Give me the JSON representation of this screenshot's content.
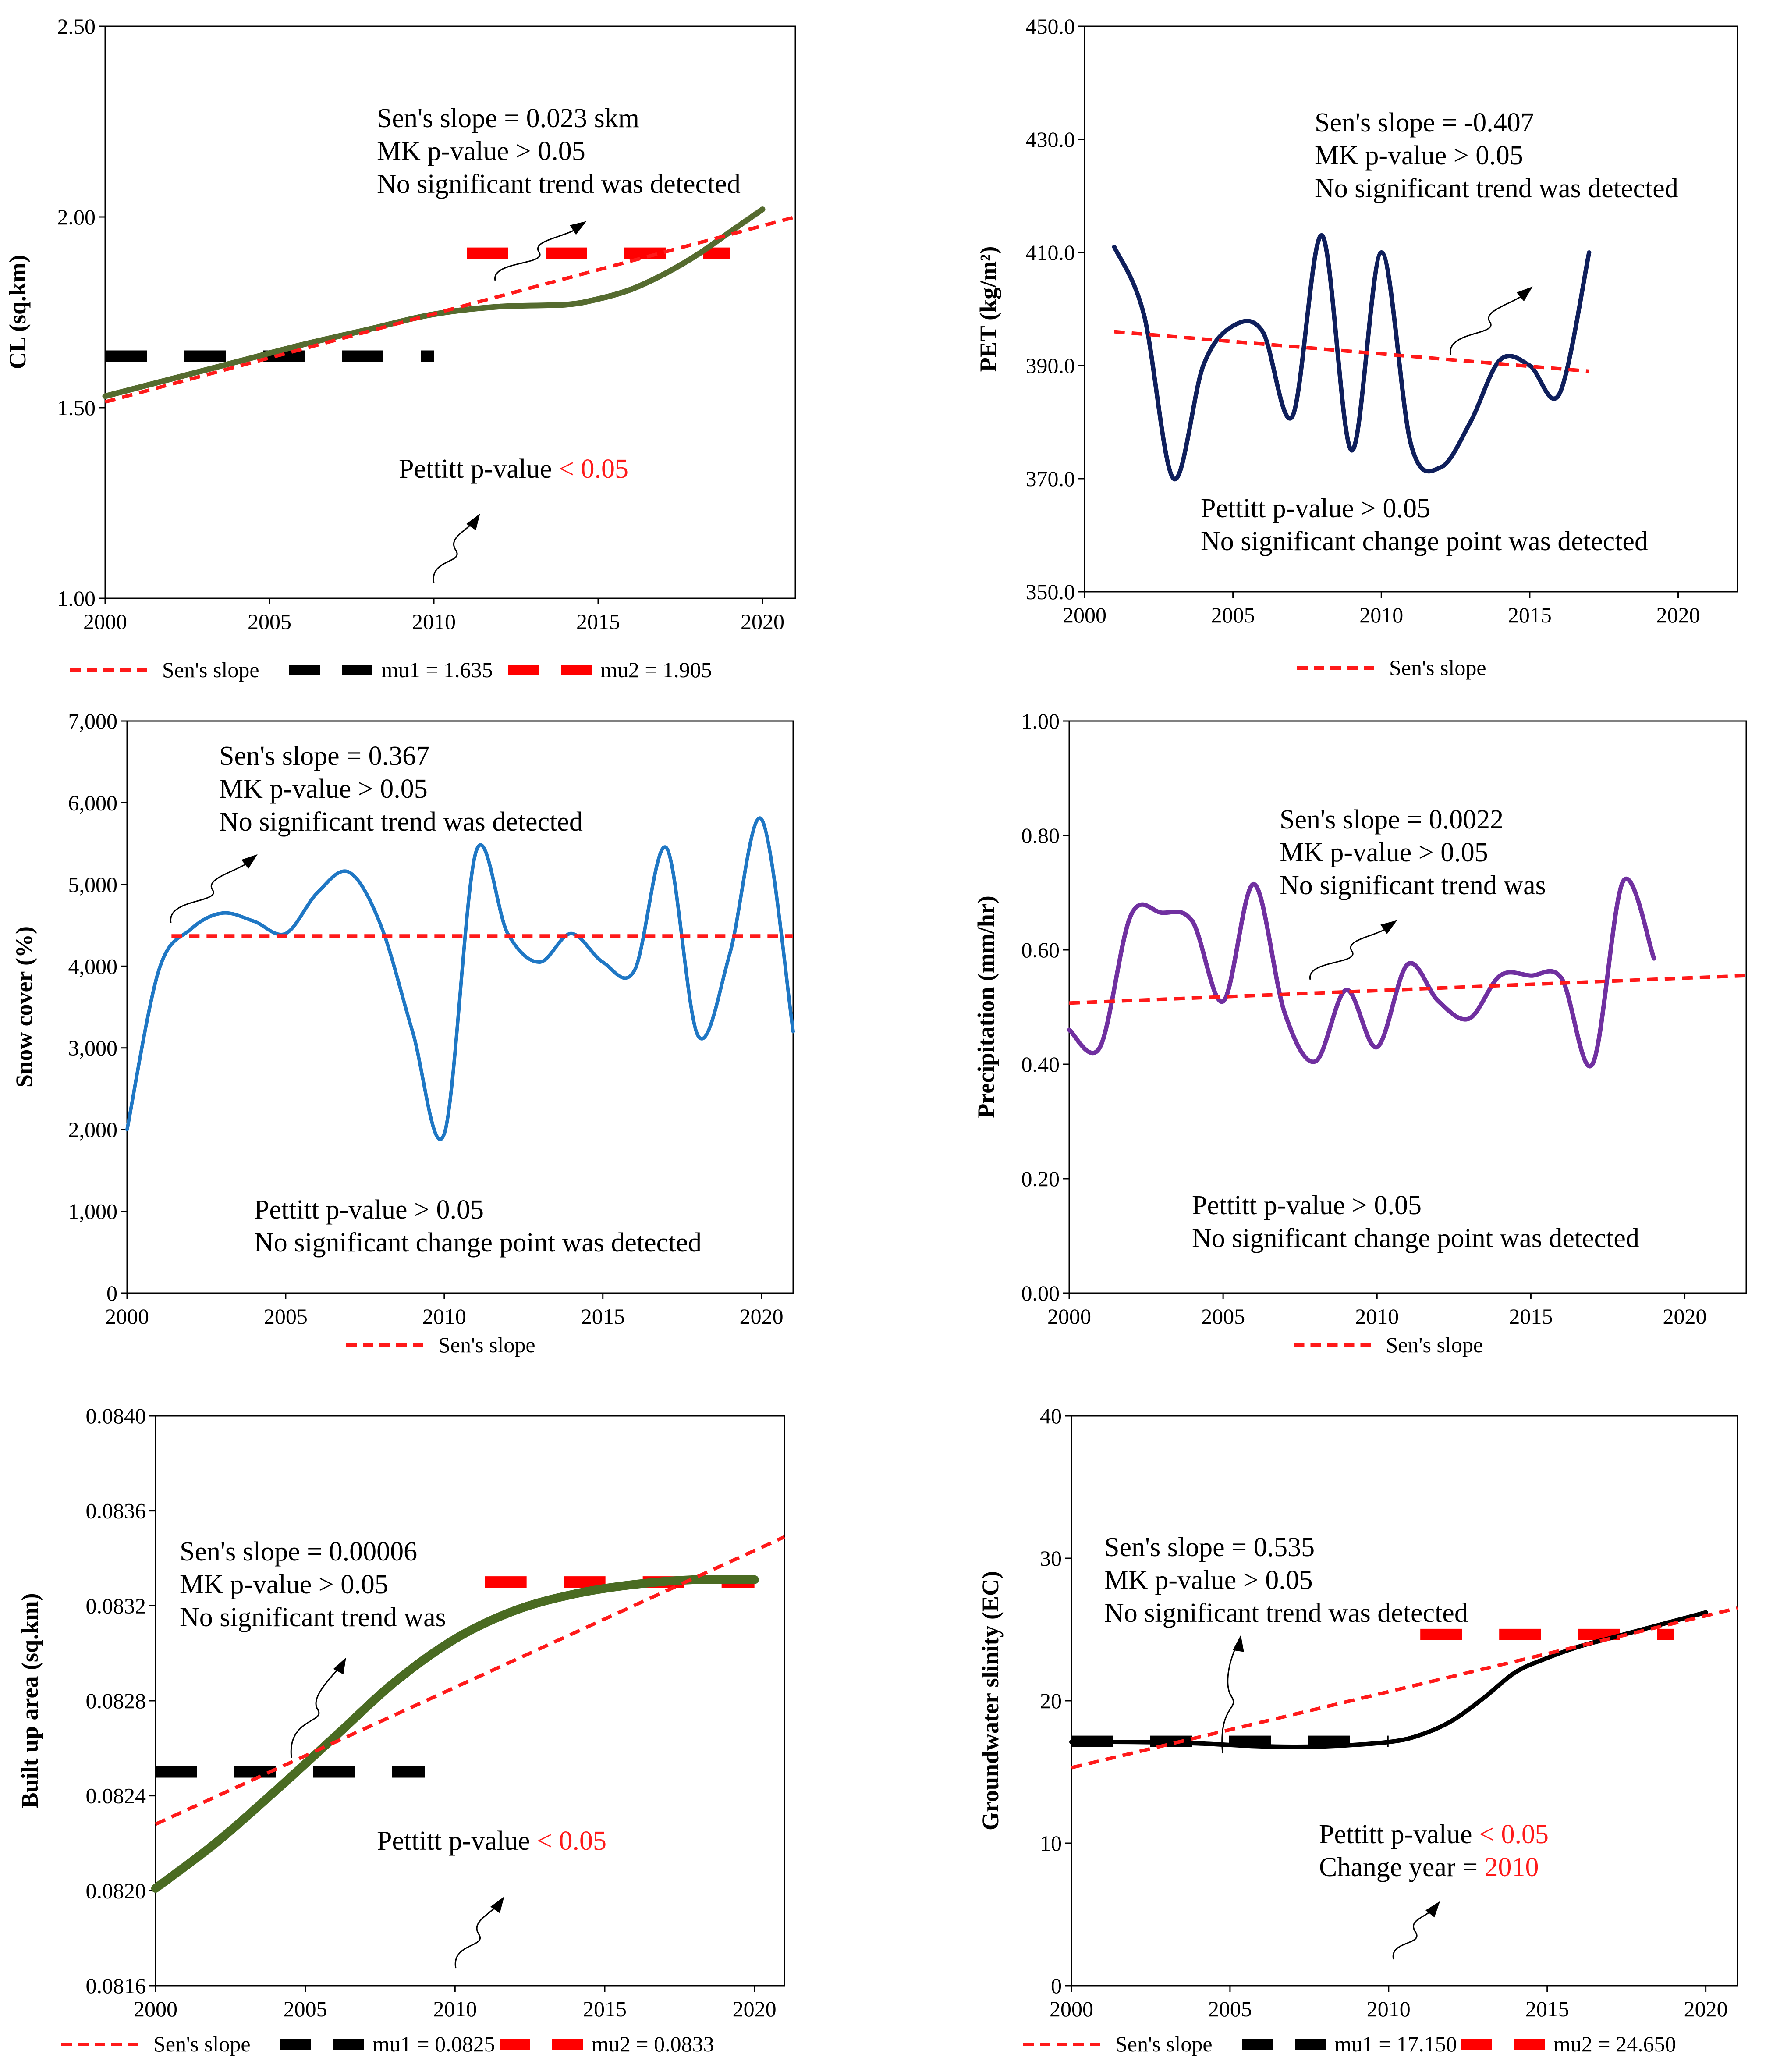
{
  "colors": {
    "sens": "#ff1a1a",
    "mu1": "#000000",
    "mu2": "#ff0000",
    "red_text": "#ff1a1a"
  },
  "chart_data": [
    {
      "id": "cl",
      "type": "line",
      "title": "",
      "xlabel": "",
      "ylabel": "CL (sq.km)",
      "xlim": [
        2000,
        2021
      ],
      "ylim": [
        1.0,
        2.5
      ],
      "xticks": [
        "2000",
        "2005",
        "2010",
        "2015",
        "2020"
      ],
      "yticks": [
        "1.00",
        "1.50",
        "2.00",
        "2.50"
      ],
      "series": [
        {
          "name": "CL",
          "color": "#556b2f",
          "width": 13,
          "x": [
            2000,
            2002,
            2004,
            2006,
            2008,
            2010,
            2012,
            2014,
            2015,
            2016,
            2017,
            2018,
            2019,
            2020
          ],
          "y": [
            1.53,
            1.575,
            1.62,
            1.665,
            1.705,
            1.745,
            1.765,
            1.77,
            1.785,
            1.81,
            1.85,
            1.9,
            1.96,
            2.02
          ]
        }
      ],
      "sens": {
        "x": [
          2000,
          2021
        ],
        "y": [
          1.515,
          2.0
        ]
      },
      "mu1": {
        "x": [
          2000,
          2010
        ],
        "value": 1.635
      },
      "mu2": {
        "x": [
          2011,
          2019
        ],
        "value": 1.905
      },
      "ann_lines": [
        "Sen's slope = 0.023 skm",
        "MK p-value > 0.05",
        "No significant trend was detected"
      ],
      "pettitt": {
        "label": "Pettitt p-value ",
        "value": "< 0.05"
      },
      "pettitt_lines": [],
      "legend": {
        "sens": "Sen's slope",
        "mu1": "mu1 = 1.635",
        "mu2": "mu2 = 1.905"
      }
    },
    {
      "id": "pet",
      "type": "line",
      "title": "",
      "xlabel": "",
      "ylabel": "PET (kg/m²)",
      "xlim": [
        2000,
        2022
      ],
      "ylim": [
        350,
        450
      ],
      "xticks": [
        "2000",
        "2005",
        "2010",
        "2015",
        "2020"
      ],
      "yticks": [
        "350.0",
        "370.0",
        "390.0",
        "410.0",
        "430.0",
        "450.0"
      ],
      "series": [
        {
          "name": "PET",
          "color": "#0f1f5c",
          "width": 10,
          "x": [
            2001,
            2002,
            2003,
            2004,
            2005,
            2006,
            2007,
            2008,
            2009,
            2010,
            2011,
            2012,
            2013,
            2014,
            2015,
            2016,
            2017
          ],
          "y": [
            411,
            399,
            370,
            390,
            397,
            396,
            381,
            413,
            375,
            410,
            376,
            372,
            380,
            391,
            390,
            385,
            410
          ]
        }
      ],
      "sens": {
        "x": [
          2001,
          2017
        ],
        "y": [
          396,
          389
        ]
      },
      "ann_lines": [
        "Sen's slope = -0.407",
        "MK p-value > 0.05",
        "No significant trend was detected"
      ],
      "pettitt_lines": [
        "Pettitt p-value > 0.05",
        "No significant change point was detected"
      ],
      "legend": {
        "sens": "Sen's slope"
      }
    },
    {
      "id": "snow",
      "type": "line",
      "title": "",
      "xlabel": "",
      "ylabel": "Snow cover (%)",
      "xlim": [
        2000,
        2021
      ],
      "ylim": [
        0,
        7000
      ],
      "xticks": [
        "2000",
        "2005",
        "2010",
        "2015",
        "2020"
      ],
      "yticks": [
        "0",
        "1,000",
        "2,000",
        "3,000",
        "4,000",
        "5,000",
        "6,000",
        "7,000"
      ],
      "series": [
        {
          "name": "Snow cover",
          "color": "#1f77c4",
          "width": 8,
          "x": [
            2000,
            2001,
            2002,
            2003,
            2004,
            2005,
            2006,
            2007,
            2008,
            2009,
            2010,
            2011,
            2012,
            2013,
            2014,
            2015,
            2016,
            2017,
            2018,
            2019,
            2020,
            2021
          ],
          "y": [
            2000,
            3950,
            4450,
            4650,
            4550,
            4400,
            4900,
            5150,
            4500,
            3200,
            1950,
            5400,
            4400,
            4050,
            4400,
            4050,
            3950,
            5450,
            3150,
            4150,
            5800,
            3200
          ]
        }
      ],
      "sens": {
        "x": [
          2001.4,
          2021
        ],
        "y": [
          4370,
          4370
        ]
      },
      "ann_lines": [
        "Sen's slope = 0.367",
        "MK p-value > 0.05",
        "No significant trend was detected"
      ],
      "pettitt_lines": [
        "Pettitt p-value > 0.05",
        "No significant change point was detected"
      ],
      "legend": {
        "sens": "Sen's slope"
      }
    },
    {
      "id": "precip",
      "type": "line",
      "title": "",
      "xlabel": "",
      "ylabel": "Precipitation (mm/hr)",
      "xlim": [
        2000,
        2022
      ],
      "ylim": [
        0,
        1.0
      ],
      "xticks": [
        "2000",
        "2005",
        "2010",
        "2015",
        "2020"
      ],
      "yticks": [
        "0.00",
        "0.20",
        "0.40",
        "0.60",
        "0.80",
        "1.00"
      ],
      "series": [
        {
          "name": "Precipitation",
          "color": "#7030a0",
          "width": 10,
          "x": [
            2000,
            2001,
            2002,
            2003,
            2004,
            2005,
            2006,
            2007,
            2008,
            2009,
            2010,
            2011,
            2012,
            2013,
            2014,
            2015,
            2016,
            2017,
            2018,
            2019
          ],
          "y": [
            0.46,
            0.43,
            0.66,
            0.665,
            0.65,
            0.51,
            0.715,
            0.49,
            0.405,
            0.53,
            0.43,
            0.575,
            0.51,
            0.48,
            0.555,
            0.555,
            0.55,
            0.4,
            0.72,
            0.585
          ]
        }
      ],
      "sens": {
        "x": [
          2000,
          2022
        ],
        "y": [
          0.507,
          0.555
        ]
      },
      "ann_lines": [
        "Sen's slope = 0.0022",
        "MK p-value > 0.05",
        "No significant trend was"
      ],
      "pettitt_lines": [
        "Pettitt p-value > 0.05",
        "No significant change point was detected"
      ],
      "legend": {
        "sens": "Sen's slope"
      }
    },
    {
      "id": "built",
      "type": "line",
      "title": "",
      "xlabel": "",
      "ylabel": "Built up area (sq.km)",
      "xlim": [
        2000,
        2021
      ],
      "ylim": [
        0.0816,
        0.084
      ],
      "xticks": [
        "2000",
        "2005",
        "2010",
        "2015",
        "2020"
      ],
      "yticks": [
        "0.0816",
        "0.0820",
        "0.0824",
        "0.0828",
        "0.0832",
        "0.0836",
        "0.0840"
      ],
      "series": [
        {
          "name": "Built up area",
          "color": "#4a6b22",
          "width": 20,
          "x": [
            2000,
            2002,
            2004,
            2006,
            2008,
            2010,
            2012,
            2014,
            2016,
            2018,
            2020
          ],
          "y": [
            0.08201,
            0.0822,
            0.08242,
            0.08265,
            0.08288,
            0.08306,
            0.08318,
            0.08325,
            0.08329,
            0.08331,
            0.08331
          ]
        }
      ],
      "sens": {
        "x": [
          2000,
          2021
        ],
        "y": [
          0.08228,
          0.08349
        ]
      },
      "mu1": {
        "x": [
          2000,
          2009
        ],
        "value": 0.0825
      },
      "mu2": {
        "x": [
          2011,
          2020
        ],
        "value": 0.0833
      },
      "ann_lines": [
        "Sen's slope = 0.00006",
        "MK p-value > 0.05",
        "No significant trend was"
      ],
      "pettitt": {
        "label": "Pettitt p-value ",
        "value": "< 0.05"
      },
      "pettitt_lines": [],
      "legend": {
        "sens": "Sen's slope",
        "mu1": "mu1 = 0.0825",
        "mu2": "mu2 = 0.0833"
      }
    },
    {
      "id": "gw",
      "type": "line",
      "title": "",
      "xlabel": "",
      "ylabel": "Groundwater slinity (EC)",
      "xlim": [
        2000,
        2021
      ],
      "ylim": [
        0,
        40
      ],
      "xticks": [
        "2000",
        "2005",
        "2010",
        "2015",
        "2020"
      ],
      "yticks": [
        "0",
        "10",
        "20",
        "30",
        "40"
      ],
      "series": [
        {
          "name": "Groundwater salinity",
          "color": "#000000",
          "width": 10,
          "x": [
            2000,
            2002,
            2004,
            2006,
            2008,
            2010,
            2011,
            2012,
            2013,
            2014,
            2015,
            2016,
            2017,
            2018,
            2019,
            2020
          ],
          "y": [
            17.1,
            17.1,
            17.0,
            16.8,
            16.8,
            17.1,
            17.6,
            18.6,
            20.2,
            22.0,
            23.0,
            23.8,
            24.4,
            25.0,
            25.6,
            26.2
          ]
        }
      ],
      "sens": {
        "x": [
          2000,
          2021
        ],
        "y": [
          15.3,
          26.5
        ]
      },
      "mu1": {
        "x": [
          2000,
          2010
        ],
        "value": 17.15
      },
      "mu2": {
        "x": [
          2011,
          2019
        ],
        "value": 24.65
      },
      "ann_lines": [
        "Sen's slope = 0.535",
        "MK p-value > 0.05",
        "No significant trend was detected"
      ],
      "pettitt": {
        "label": "Pettitt p-value ",
        "value": "< 0.05"
      },
      "pettitt_lines": [],
      "change": {
        "label": "Change year = ",
        "value": "2010"
      },
      "legend": {
        "sens": "Sen's slope",
        "mu1": "mu1 = 17.150",
        "mu2": "mu2 = 24.650"
      }
    }
  ]
}
